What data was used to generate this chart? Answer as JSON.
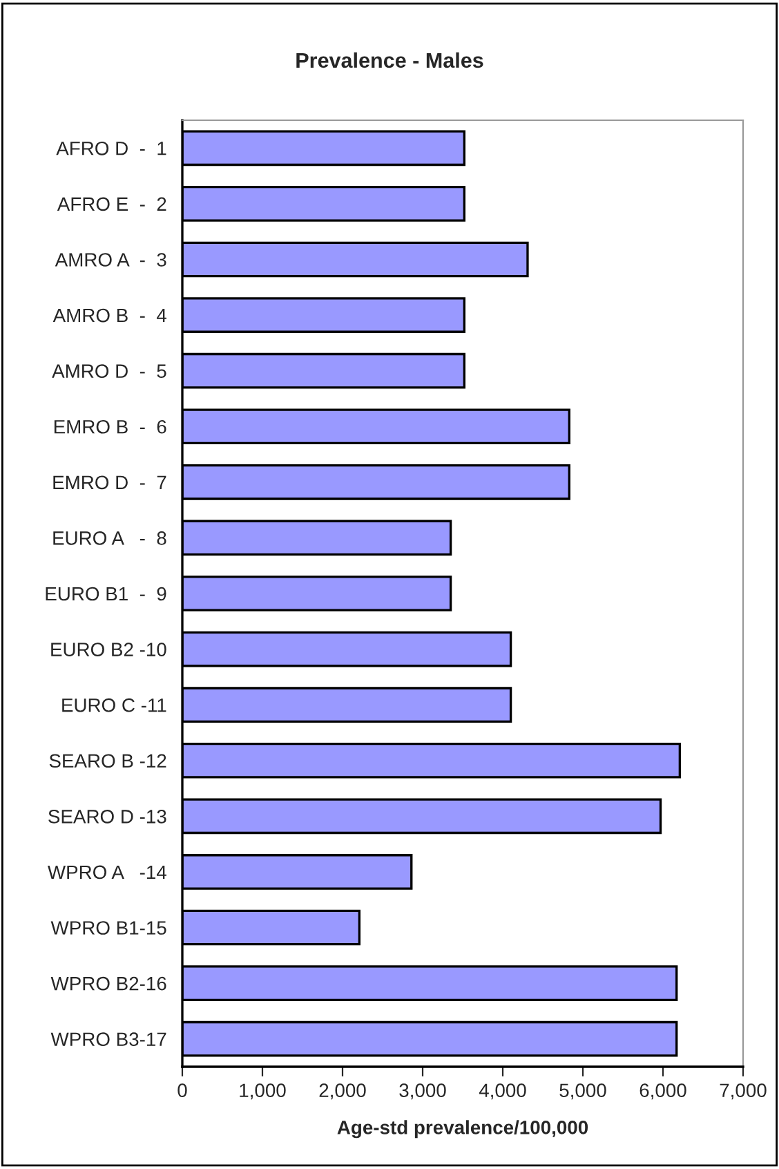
{
  "chart_data": {
    "type": "bar",
    "orientation": "horizontal",
    "title": "Prevalence - Males",
    "xlabel": "Age-std prevalence/100,000",
    "categories": [
      "AFRO D  -  1",
      "AFRO E  -  2",
      "AMRO A  -  3",
      "AMRO B  -  4",
      "AMRO D  -  5",
      "EMRO B  -  6",
      "EMRO D  -  7",
      "EURO A   -  8",
      "EURO B1  -  9",
      "EURO B2 -10",
      "EURO C -11",
      "SEARO B -12",
      "SEARO D -13",
      "WPRO A   -14",
      "WPRO B1-15",
      "WPRO B2-16",
      "WPRO B3-17"
    ],
    "values": [
      3520,
      3520,
      4310,
      3520,
      3520,
      4830,
      4830,
      3350,
      3350,
      4100,
      4100,
      6210,
      5970,
      2860,
      2210,
      6170,
      6170
    ],
    "color": "#9999ff",
    "xlim": [
      0,
      7000
    ],
    "xticks": [
      0,
      {
        "value": 1000,
        "label": "1,000"
      },
      {
        "value": 2000,
        "label": "2,000"
      },
      {
        "value": 3000,
        "label": "3,000"
      },
      {
        "value": 4000,
        "label": "4,000"
      },
      {
        "value": 5000,
        "label": "5,000"
      },
      {
        "value": 6000,
        "label": "6,000"
      },
      {
        "value": 7000,
        "label": "7,000"
      }
    ],
    "grid": false,
    "legend": false
  }
}
